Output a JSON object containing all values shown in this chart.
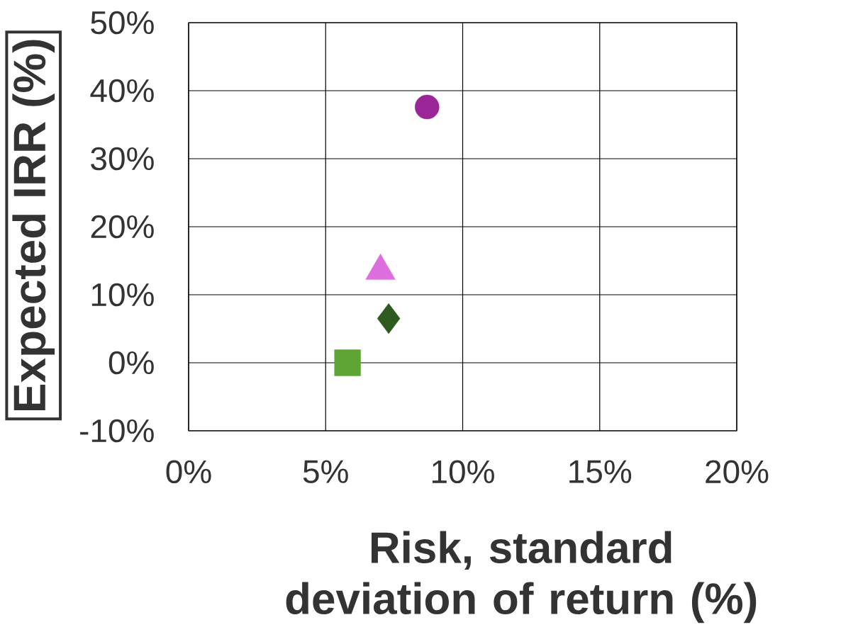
{
  "chart_data": {
    "type": "scatter",
    "xlabel": "Risk, standard deviation of return (%)",
    "ylabel": "Expected IRR (%)",
    "xlim": [
      0,
      20
    ],
    "ylim": [
      -10,
      50
    ],
    "xticks": [
      {
        "value": 0,
        "label": "0%"
      },
      {
        "value": 5,
        "label": "5%"
      },
      {
        "value": 10,
        "label": "10%"
      },
      {
        "value": 15,
        "label": "15%"
      },
      {
        "value": 20,
        "label": "20%"
      }
    ],
    "yticks": [
      {
        "value": -10,
        "label": "-10%"
      },
      {
        "value": 0,
        "label": "0%"
      },
      {
        "value": 10,
        "label": "10%"
      },
      {
        "value": 20,
        "label": "20%"
      },
      {
        "value": 30,
        "label": "30%"
      },
      {
        "value": 40,
        "label": "40%"
      },
      {
        "value": 50,
        "label": "50%"
      }
    ],
    "grid": true,
    "series": [
      {
        "x": [
          8.7
        ],
        "values": [
          37.6
        ],
        "color": "#9a2596",
        "marker": "circle"
      },
      {
        "x": [
          7.0
        ],
        "values": [
          13.5
        ],
        "color": "#dd6edd",
        "marker": "triangle"
      },
      {
        "x": [
          7.3
        ],
        "values": [
          6.5
        ],
        "color": "#2f5a1f",
        "marker": "diamond"
      },
      {
        "x": [
          5.8
        ],
        "values": [
          0
        ],
        "color": "#5ea535",
        "marker": "square"
      }
    ]
  }
}
